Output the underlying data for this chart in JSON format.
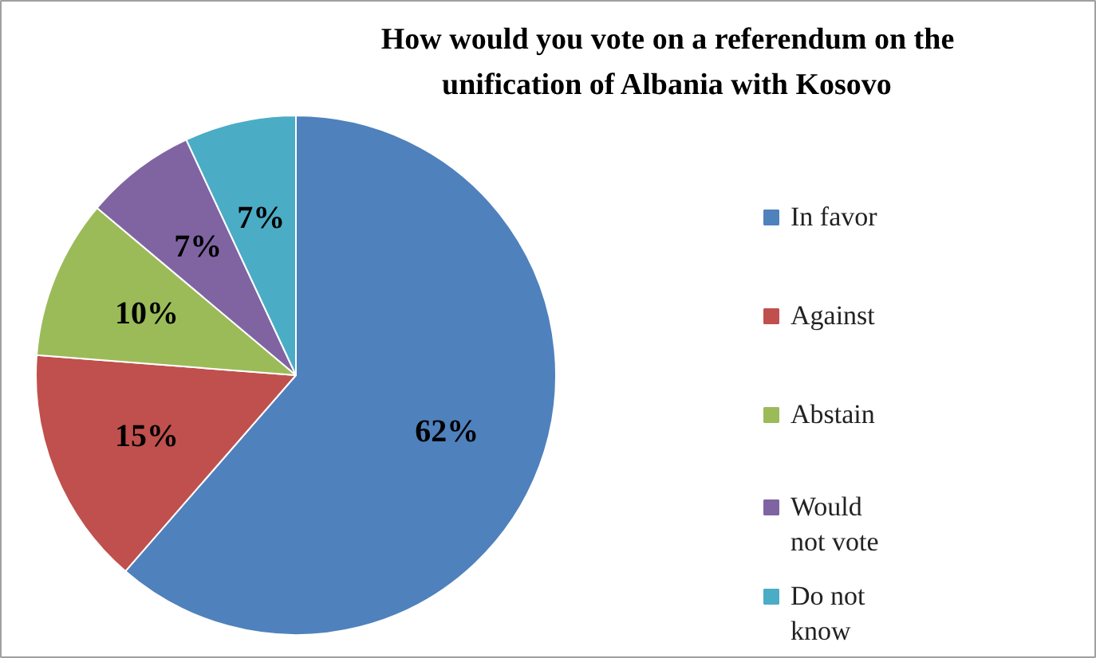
{
  "chart_data": {
    "type": "pie",
    "title": "How would you vote on a referendum on the unification of Albania with Kosovo",
    "categories": [
      "In favor",
      "Against",
      "Abstain",
      "Would not vote",
      "Do not know"
    ],
    "values": [
      62,
      15,
      10,
      7,
      7
    ],
    "value_labels": [
      "62%",
      "15%",
      "10%",
      "7%",
      "7%"
    ],
    "colors": [
      "#4f81bd",
      "#c0504d",
      "#9bbb59",
      "#8064a2",
      "#4bacc6"
    ],
    "legend": "right"
  }
}
